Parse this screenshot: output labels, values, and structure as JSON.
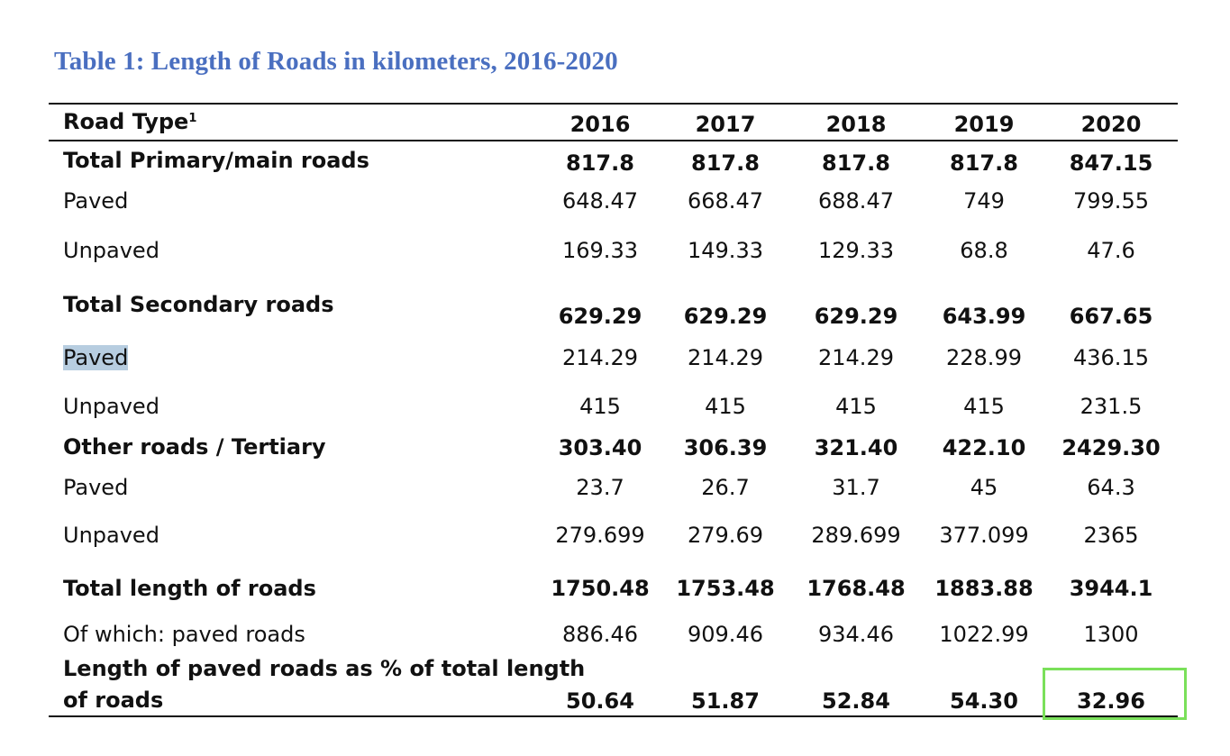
{
  "title": "Table 1: Length of Roads in kilometers, 2016-2020",
  "header": {
    "road_type": "Road Type",
    "footnote": "1",
    "years": [
      "2016",
      "2017",
      "2018",
      "2019",
      "2020"
    ]
  },
  "rows": [
    {
      "label": "Total Primary/main  roads",
      "values": [
        "817.8",
        "817.8",
        "817.8",
        "817.8",
        "847.15"
      ],
      "bold": true
    },
    {
      "label": "Paved",
      "values": [
        "648.47",
        "668.47",
        "688.47",
        "749",
        "799.55"
      ],
      "bold": false
    },
    {
      "label": "Unpaved",
      "values": [
        "169.33",
        "149.33",
        "129.33",
        "68.8",
        "47.6"
      ],
      "bold": false
    },
    {
      "label": "Total Secondary roads",
      "values": [
        "629.29",
        "629.29",
        "629.29",
        "643.99",
        "667.65"
      ],
      "bold": true
    },
    {
      "label": "Paved",
      "values": [
        "214.29",
        "214.29",
        "214.29",
        "228.99",
        "436.15"
      ],
      "bold": false
    },
    {
      "label": "Unpaved",
      "values": [
        "415",
        "415",
        "415",
        "415",
        "231.5"
      ],
      "bold": false
    },
    {
      "label": "Other roads / Tertiary",
      "values": [
        "303.40",
        "306.39",
        "321.40",
        "422.10",
        "2429.30"
      ],
      "bold": true
    },
    {
      "label": "Paved",
      "values": [
        "23.7",
        "26.7",
        "31.7",
        "45",
        "64.3"
      ],
      "bold": false
    },
    {
      "label": "Unpaved",
      "values": [
        "279.699",
        "279.69",
        "289.699",
        "377.099",
        "2365"
      ],
      "bold": false
    },
    {
      "label": "Total length of roads",
      "values": [
        "1750.48",
        "1753.48",
        "1768.48",
        "1883.88",
        "3944.1"
      ],
      "bold": true
    },
    {
      "label": "Of which: paved roads",
      "values": [
        "886.46",
        "909.46",
        "934.46",
        "1022.99",
        "1300"
      ],
      "bold": false
    },
    {
      "label_line1": "Length of paved roads as % of total length",
      "label_line2": "of roads",
      "values": [
        "50.64",
        "51.87",
        "52.84",
        "54.30",
        "32.96"
      ],
      "bold": true
    }
  ],
  "highlight_color": "#7ae05a",
  "selection_color": "#b7cde0"
}
